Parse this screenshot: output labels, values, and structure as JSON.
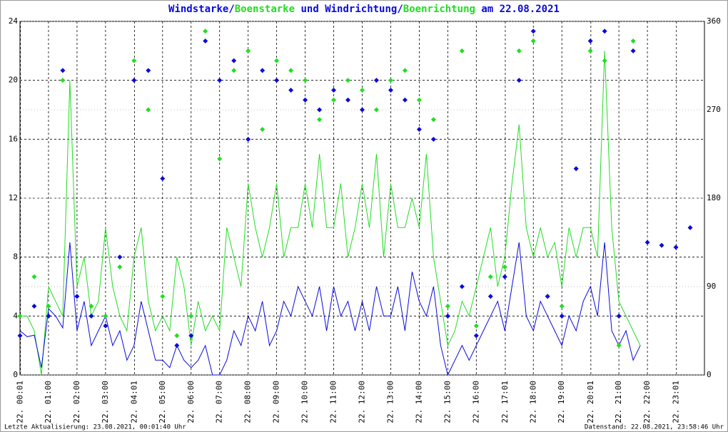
{
  "chart_data": {
    "type": "line",
    "title_parts": [
      {
        "text": "Windstarke",
        "color": "#0a0adc"
      },
      {
        "text": "/",
        "color": "#0a0adc"
      },
      {
        "text": "Boenstarke",
        "color": "#22dd22"
      },
      {
        "text": " und ",
        "color": "#0a0adc"
      },
      {
        "text": "Windrichtung",
        "color": "#0a0adc"
      },
      {
        "text": "/",
        "color": "#0a0adc"
      },
      {
        "text": "Boenrichtung",
        "color": "#22dd22"
      },
      {
        "text": " am 22.08.2021",
        "color": "#0a0adc"
      }
    ],
    "footer_left": "Letzte Aktualisierung: 23.08.2021, 00:01:40 Uhr",
    "footer_right": "Datenstand: 22.08.2021, 23:58:46 Uhr",
    "xlim": [
      0,
      24
    ],
    "xticks": [
      {
        "value": 0.017,
        "label": "22. 00:01"
      },
      {
        "value": 1,
        "label": "22. 01:00"
      },
      {
        "value": 2,
        "label": "22. 02:00"
      },
      {
        "value": 3,
        "label": "22. 03:00"
      },
      {
        "value": 4.017,
        "label": "22. 04:01"
      },
      {
        "value": 5,
        "label": "22. 05:00"
      },
      {
        "value": 6,
        "label": "22. 06:00"
      },
      {
        "value": 7,
        "label": "22. 07:00"
      },
      {
        "value": 8,
        "label": "22. 08:00"
      },
      {
        "value": 9,
        "label": "22. 09:00"
      },
      {
        "value": 10,
        "label": "22. 10:00"
      },
      {
        "value": 11,
        "label": "22. 11:00"
      },
      {
        "value": 12,
        "label": "22. 12:00"
      },
      {
        "value": 13,
        "label": "22. 13:00"
      },
      {
        "value": 14,
        "label": "22. 14:00"
      },
      {
        "value": 15,
        "label": "22. 15:00"
      },
      {
        "value": 16,
        "label": "22. 16:00"
      },
      {
        "value": 17.017,
        "label": "22. 17:01"
      },
      {
        "value": 18,
        "label": "22. 18:00"
      },
      {
        "value": 19,
        "label": "22. 19:00"
      },
      {
        "value": 20.017,
        "label": "22. 20:01"
      },
      {
        "value": 21,
        "label": "22. 21:00"
      },
      {
        "value": 22,
        "label": "22. 22:00"
      },
      {
        "value": 23.017,
        "label": "22. 23:01"
      }
    ],
    "ylim": [
      0,
      24
    ],
    "yticks": [
      0,
      4,
      8,
      12,
      16,
      20,
      24
    ],
    "y2lim": [
      0,
      360
    ],
    "y2ticks": [
      0,
      90,
      180,
      270,
      360
    ],
    "grid": true,
    "series": [
      {
        "name": "Boenstarke",
        "color": "#22dd22",
        "style": "line",
        "x": [
          0,
          0.25,
          0.5,
          0.75,
          1,
          1.25,
          1.5,
          1.75,
          2,
          2.25,
          2.5,
          2.75,
          3,
          3.25,
          3.5,
          3.75,
          4,
          4.25,
          4.5,
          4.75,
          5,
          5.25,
          5.5,
          5.75,
          6,
          6.25,
          6.5,
          6.75,
          7,
          7.25,
          7.5,
          7.75,
          8,
          8.25,
          8.5,
          8.75,
          9,
          9.25,
          9.5,
          9.75,
          10,
          10.25,
          10.5,
          10.75,
          11,
          11.25,
          11.5,
          11.75,
          12,
          12.25,
          12.5,
          12.75,
          13,
          13.25,
          13.5,
          13.75,
          14,
          14.25,
          14.5,
          14.75,
          15,
          15.25,
          15.5,
          15.75,
          16,
          16.25,
          16.5,
          16.75,
          17,
          17.25,
          17.5,
          17.75,
          18,
          18.25,
          18.5,
          18.75,
          19,
          19.25,
          19.5,
          19.75,
          20,
          20.25,
          20.5,
          20.75,
          21,
          21.25,
          21.5,
          21.75
        ],
        "values": [
          4,
          4,
          3,
          0,
          6,
          5,
          4,
          20,
          6,
          8,
          4,
          5,
          10,
          6,
          4,
          3,
          8,
          10,
          5,
          3,
          4,
          3,
          8,
          6,
          2,
          5,
          3,
          4,
          3,
          10,
          8,
          6,
          13,
          10,
          8,
          10,
          13,
          8,
          10,
          10,
          13,
          10,
          15,
          10,
          10,
          13,
          8,
          10,
          13,
          10,
          15,
          8,
          13,
          10,
          10,
          12,
          10,
          15,
          8,
          5,
          2,
          3,
          5,
          4,
          6,
          8,
          10,
          6,
          8,
          13,
          17,
          10,
          8,
          10,
          8,
          9,
          6,
          10,
          8,
          10,
          10,
          8,
          22,
          10,
          5,
          4,
          3,
          2
        ]
      },
      {
        "name": "Windstarke",
        "color": "#0a0adc",
        "style": "line",
        "x": [
          0,
          0.25,
          0.5,
          0.75,
          1,
          1.25,
          1.5,
          1.75,
          2,
          2.25,
          2.5,
          2.75,
          3,
          3.25,
          3.5,
          3.75,
          4,
          4.25,
          4.5,
          4.75,
          5,
          5.25,
          5.5,
          5.75,
          6,
          6.25,
          6.5,
          6.75,
          7,
          7.25,
          7.5,
          7.75,
          8,
          8.25,
          8.5,
          8.75,
          9,
          9.25,
          9.5,
          9.75,
          10,
          10.25,
          10.5,
          10.75,
          11,
          11.25,
          11.5,
          11.75,
          12,
          12.25,
          12.5,
          12.75,
          13,
          13.25,
          13.5,
          13.75,
          14,
          14.25,
          14.5,
          14.75,
          15,
          15.25,
          15.5,
          15.75,
          16,
          16.25,
          16.5,
          16.75,
          17,
          17.25,
          17.5,
          17.75,
          18,
          18.25,
          18.5,
          18.75,
          19,
          19.25,
          19.5,
          19.75,
          20,
          20.25,
          20.5,
          20.75,
          21,
          21.25,
          21.5,
          21.75
        ],
        "values": [
          3,
          2.6,
          2.7,
          0.5,
          4.5,
          4,
          3.2,
          9,
          3,
          5,
          2,
          3,
          4,
          2,
          3,
          1,
          2,
          5,
          3,
          1,
          1,
          0.5,
          2,
          1,
          0.5,
          1,
          2,
          0,
          0,
          1,
          3,
          2,
          4,
          3,
          5,
          2,
          3,
          5,
          4,
          6,
          5,
          4,
          6,
          3,
          6,
          4,
          5,
          3,
          5,
          3,
          6,
          4,
          4,
          6,
          3,
          7,
          5,
          4,
          6,
          2,
          0,
          1,
          2,
          1,
          2,
          3,
          4,
          5,
          3,
          6,
          9,
          4,
          3,
          5,
          4,
          3,
          2,
          4,
          3,
          5,
          6,
          4,
          9,
          3,
          2,
          3,
          1,
          2
        ]
      },
      {
        "name": "Boenrichtung",
        "color": "#22dd22",
        "style": "marker",
        "axis": "y2",
        "x": [
          0,
          0.5,
          1,
          1.5,
          2,
          2.5,
          3,
          3.5,
          4,
          4.5,
          5,
          5.5,
          6,
          6.5,
          7,
          7.5,
          8,
          8.5,
          9,
          9.5,
          10,
          10.5,
          11,
          11.5,
          12,
          12.5,
          13,
          13.5,
          14,
          14.5,
          15,
          15.5,
          16,
          16.5,
          17,
          17.5,
          18,
          18.5,
          19,
          19.5,
          20,
          20.5,
          21,
          21.5
        ],
        "values": [
          60,
          100,
          70,
          300,
          80,
          70,
          60,
          110,
          320,
          270,
          80,
          40,
          60,
          350,
          220,
          310,
          330,
          250,
          320,
          310,
          300,
          260,
          280,
          300,
          290,
          270,
          300,
          310,
          280,
          260,
          70,
          330,
          50,
          100,
          110,
          330,
          340,
          80,
          70,
          210,
          330,
          320,
          30,
          340
        ]
      },
      {
        "name": "Windrichtung",
        "color": "#0a0adc",
        "style": "marker",
        "axis": "y2",
        "x": [
          0,
          0.5,
          1,
          1.5,
          2,
          2.5,
          3,
          3.5,
          4,
          4.5,
          5,
          5.5,
          6,
          6.5,
          7,
          7.5,
          8,
          8.5,
          9,
          9.5,
          10,
          10.5,
          11,
          11.5,
          12,
          12.5,
          13,
          13.5,
          14,
          14.5,
          15,
          15.5,
          16,
          16.5,
          17,
          17.5,
          18,
          18.5,
          19,
          19.5,
          20,
          20.5,
          21,
          21.5,
          22,
          22.5,
          23,
          23.5
        ],
        "values": [
          40,
          70,
          60,
          310,
          80,
          60,
          50,
          120,
          300,
          310,
          200,
          30,
          40,
          340,
          300,
          320,
          240,
          310,
          300,
          290,
          280,
          270,
          290,
          280,
          270,
          300,
          290,
          280,
          250,
          240,
          60,
          90,
          40,
          80,
          100,
          300,
          350,
          80,
          60,
          210,
          340,
          350,
          60,
          330,
          135,
          132,
          130,
          150
        ]
      }
    ]
  }
}
